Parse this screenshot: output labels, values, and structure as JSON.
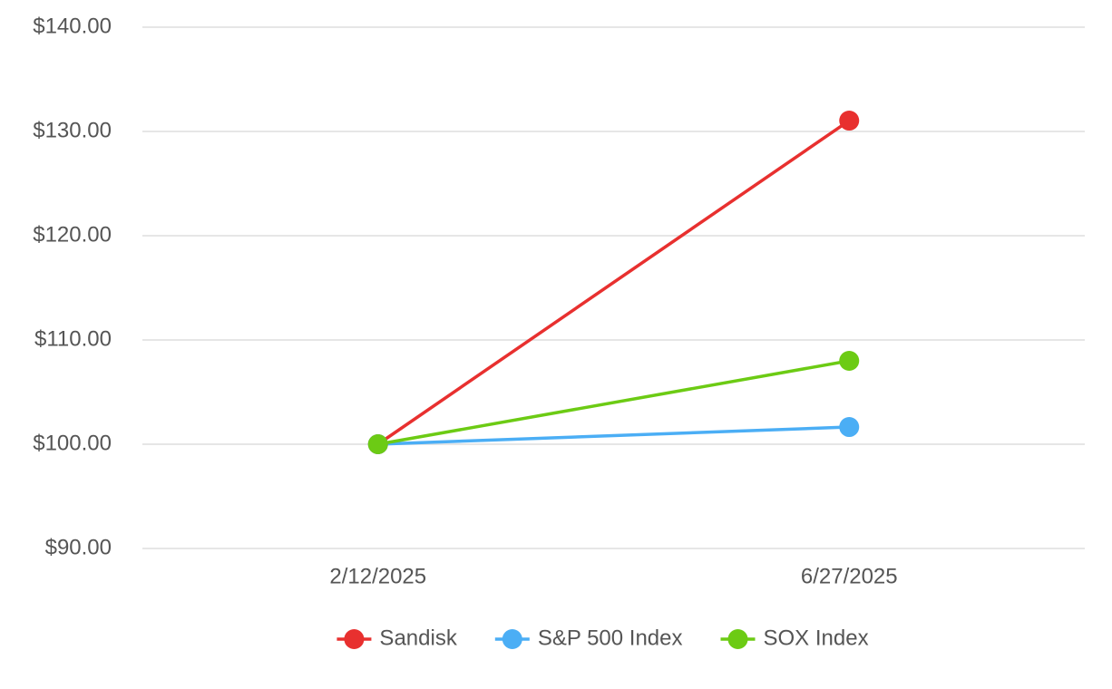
{
  "chart_data": {
    "type": "line",
    "categories": [
      "2/12/2025",
      "6/27/2025"
    ],
    "series": [
      {
        "name": "Sandisk",
        "color": "#e8302f",
        "values": [
          100,
          131.04
        ]
      },
      {
        "name": "S&P 500 Index",
        "color": "#4baef5",
        "values": [
          100,
          101.65
        ]
      },
      {
        "name": "SOX Index",
        "color": "#6ccb14",
        "values": [
          100,
          108.0
        ]
      }
    ],
    "ylim": [
      90,
      140
    ],
    "yticks": [
      {
        "value": 90,
        "label": "$90.00"
      },
      {
        "value": 100,
        "label": "$100.00"
      },
      {
        "value": 110,
        "label": "$110.00"
      },
      {
        "value": 120,
        "label": "$120.00"
      },
      {
        "value": 130,
        "label": "$130.00"
      },
      {
        "value": 140,
        "label": "$140.00"
      }
    ],
    "grid": true,
    "legend": "bottom"
  }
}
